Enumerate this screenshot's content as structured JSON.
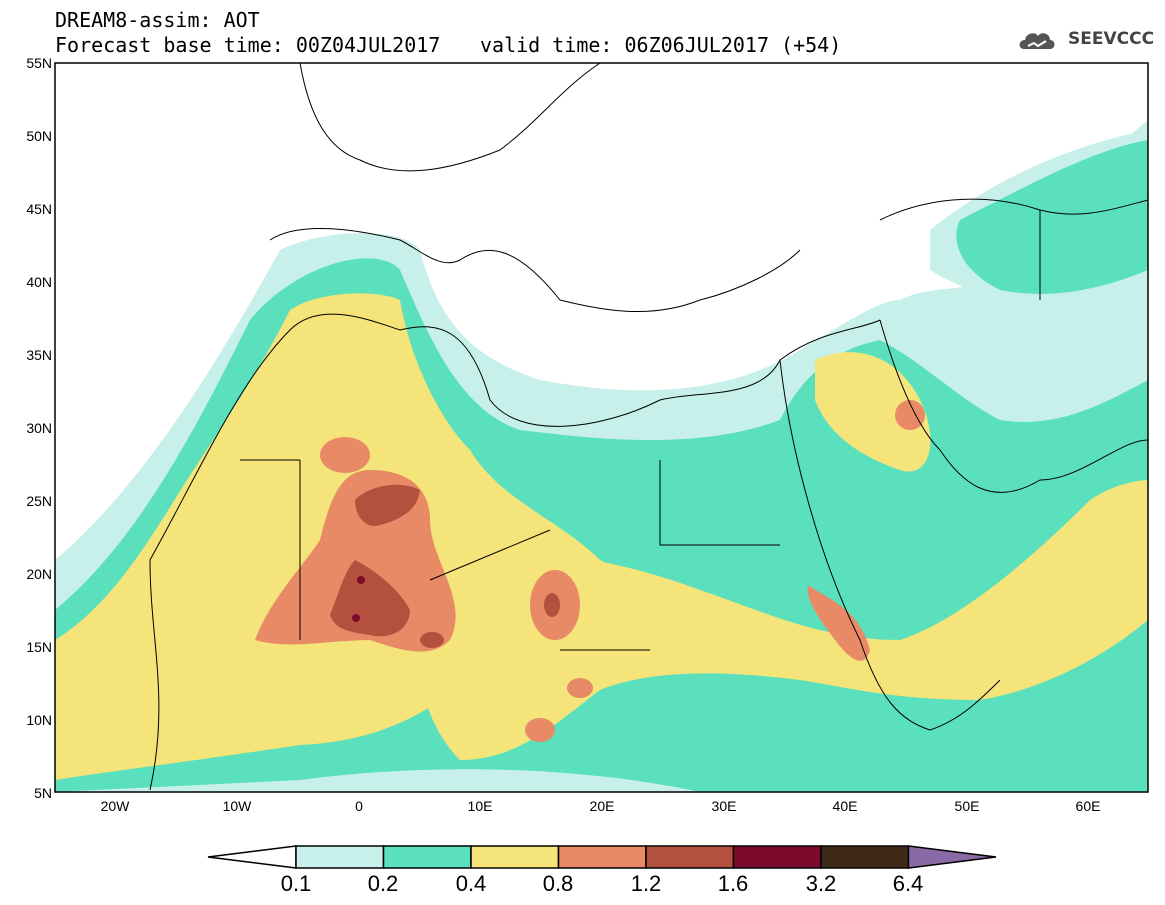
{
  "header": {
    "line1": "DREAM8-assim: AOT",
    "base_time": "Forecast base time: 00Z04JUL2017",
    "valid_time": "valid time: 06Z06JUL2017 (+54)"
  },
  "logo": {
    "text": "SEEVCCC",
    "icon": "cloud-logo-icon"
  },
  "map": {
    "lat_labels": [
      "55N",
      "50N",
      "45N",
      "40N",
      "35N",
      "30N",
      "25N",
      "20N",
      "15N",
      "10N",
      "5N"
    ],
    "lon_labels": [
      "20W",
      "10W",
      "0",
      "10E",
      "20E",
      "30E",
      "40E",
      "50E",
      "60E"
    ]
  },
  "colorbar": {
    "labels": [
      "0.1",
      "0.2",
      "0.4",
      "0.8",
      "1.2",
      "1.6",
      "3.2",
      "6.4"
    ],
    "colors": [
      "#ffffff",
      "#c6f0e9",
      "#5ae0bd",
      "#f4e47a",
      "#e88a66",
      "#b4503e",
      "#7c0a2a",
      "#3f2a17",
      "#8a6aa5"
    ]
  }
}
